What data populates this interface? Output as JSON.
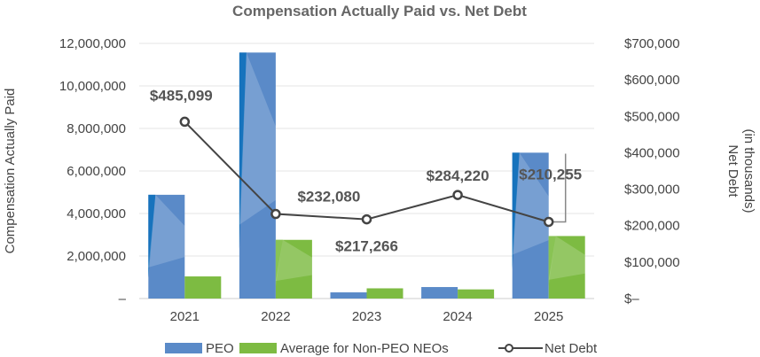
{
  "chart_data": {
    "type": "bar",
    "title": "Compensation Actually Paid vs. Net Debt",
    "categories": [
      "2021",
      "2022",
      "2023",
      "2024",
      "2025"
    ],
    "ylabel": "Compensation Actually Paid",
    "y2label": [
      "Net Debt",
      "(in thousands)"
    ],
    "ylim": [
      0,
      12000000
    ],
    "y2lim": [
      0,
      700000
    ],
    "yticks": [
      "–",
      "2,000,000",
      "4,000,000",
      "6,000,000",
      "8,000,000",
      "10,000,000",
      "12,000,000"
    ],
    "y2ticks": [
      "$–",
      "$100,000",
      "$200,000",
      "$300,000",
      "$400,000",
      "$500,000",
      "$600,000",
      "$700,000"
    ],
    "grid": true,
    "legend": "bottom",
    "series": [
      {
        "name": "PEO",
        "type": "bar",
        "axis": "left",
        "color": "#5a8ac8",
        "values": [
          4880000,
          11570000,
          290000,
          540000,
          6860000
        ]
      },
      {
        "name": "Average for Non-PEO NEOs",
        "type": "bar",
        "axis": "left",
        "color": "#7dbb42",
        "values": [
          1040000,
          2760000,
          480000,
          430000,
          2940000
        ]
      },
      {
        "name": "Net Debt",
        "type": "line",
        "axis": "right",
        "color": "#444444",
        "values": [
          485099,
          232080,
          217266,
          284220,
          210255
        ],
        "labels": [
          "$485,099",
          "$232,080",
          "$217,266",
          "$284,220",
          "$210,255"
        ]
      }
    ]
  }
}
